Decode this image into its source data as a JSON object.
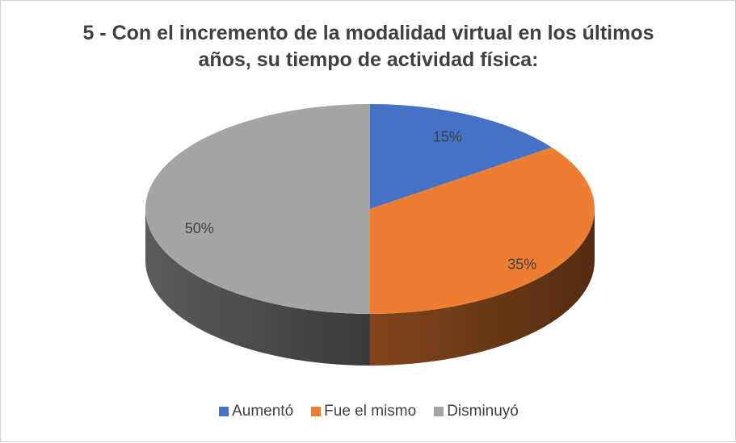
{
  "chart_data": {
    "type": "pie",
    "title": "5 - Con el incremento de la modalidad virtual en los últimos años, su tiempo de actividad física:",
    "categories": [
      "Aumentó",
      "Fue el mismo",
      "Disminuyó"
    ],
    "values": [
      15,
      35,
      50
    ],
    "value_labels": [
      "15%",
      "35%",
      "50%"
    ],
    "colors": [
      "#4472c4",
      "#ed7d31",
      "#a5a5a5"
    ],
    "legend": "bottom"
  }
}
